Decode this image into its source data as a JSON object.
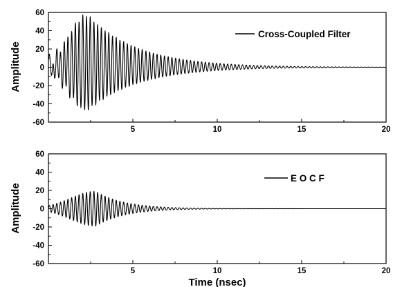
{
  "chart_data": [
    {
      "type": "line",
      "title": "",
      "xlabel": "",
      "ylabel": "Amplitude",
      "xlim": [
        0,
        20
      ],
      "ylim": [
        -60,
        60
      ],
      "x_ticks": [
        5,
        10,
        15,
        20
      ],
      "y_ticks": [
        -60,
        -40,
        -20,
        0,
        20,
        40,
        60
      ],
      "grid": false,
      "legend": "top-right",
      "color": "#000000",
      "series": [
        {
          "name": "Cross-Coupled Filter",
          "signal": {
            "kind": "modulated_oscillation",
            "period_nsec": 0.22,
            "envelope_peak_time_nsec": 2.3,
            "envelope_peak": 57,
            "envelope_negative_peak": -47,
            "rise_width_nsec": 1.1,
            "decay_time_nsec": 3.0,
            "low_freq_ringing": {
              "period_nsec": 0.5,
              "amplitude": 8,
              "decay_time_nsec": 1.5
            }
          },
          "envelope": {
            "x": [
              0,
              0.5,
              1.0,
              1.5,
              2.0,
              2.5,
              3.0,
              3.5,
              4.0,
              5.0,
              6.0,
              7.0,
              8.0,
              9.0,
              10.0,
              11.0,
              12.0,
              14.0,
              16.0,
              18.0,
              20.0
            ],
            "y": [
              2,
              8,
              22,
              42,
              54,
              56,
              48,
              40,
              33,
              22,
              15,
              10,
              7,
              5,
              3.5,
              2.5,
              1.8,
              1.0,
              0.6,
              0.3,
              0.2
            ]
          }
        }
      ]
    },
    {
      "type": "line",
      "title": "",
      "xlabel": "Time (nsec)",
      "ylabel": "Amplitude",
      "xlim": [
        0,
        20
      ],
      "ylim": [
        -60,
        60
      ],
      "x_ticks": [
        5,
        10,
        15,
        20
      ],
      "y_ticks": [
        -60,
        -40,
        -20,
        0,
        20,
        40,
        60
      ],
      "grid": false,
      "legend": "top-right",
      "color": "#000000",
      "series": [
        {
          "name": "E O C F",
          "signal": {
            "kind": "modulated_oscillation",
            "period_nsec": 0.22,
            "envelope_peak_time_nsec": 2.8,
            "envelope_peak": 19,
            "envelope_negative_peak": -19,
            "rise_width_nsec": 1.5,
            "decay_time_nsec": 1.7,
            "low_freq_ringing": null
          },
          "envelope": {
            "x": [
              0,
              0.5,
              1.0,
              1.5,
              2.0,
              2.5,
              3.0,
              3.5,
              4.0,
              5.0,
              6.0,
              7.0,
              8.0,
              9.0,
              10.0,
              12.0,
              14.0,
              16.0,
              18.0,
              20.0
            ],
            "y": [
              2,
              6,
              11,
              15,
              18,
              19,
              19,
              18,
              16,
              12,
              8,
              5,
              3,
              1.5,
              0.8,
              0.4,
              0.2,
              0.1,
              0.1,
              0.1
            ]
          }
        }
      ]
    }
  ]
}
